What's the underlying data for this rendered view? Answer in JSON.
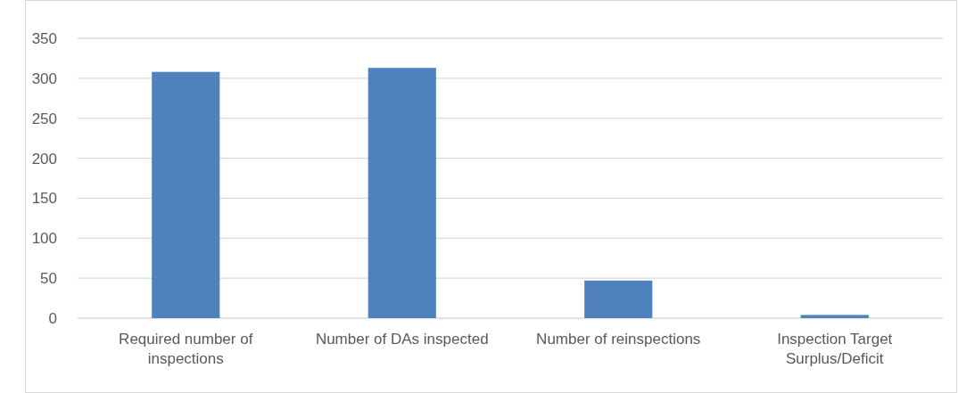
{
  "chart_data": {
    "type": "bar",
    "categories": [
      "Required number of inspections",
      "Number of DAs inspected",
      "Number of reinspections",
      "Inspection Target Surplus/Deficit"
    ],
    "values": [
      308,
      313,
      47,
      4
    ],
    "color": "#4f81bd",
    "ylim": [
      0,
      350
    ],
    "yticks": [
      0,
      50,
      100,
      150,
      200,
      250,
      300,
      350
    ],
    "grid": "y"
  }
}
